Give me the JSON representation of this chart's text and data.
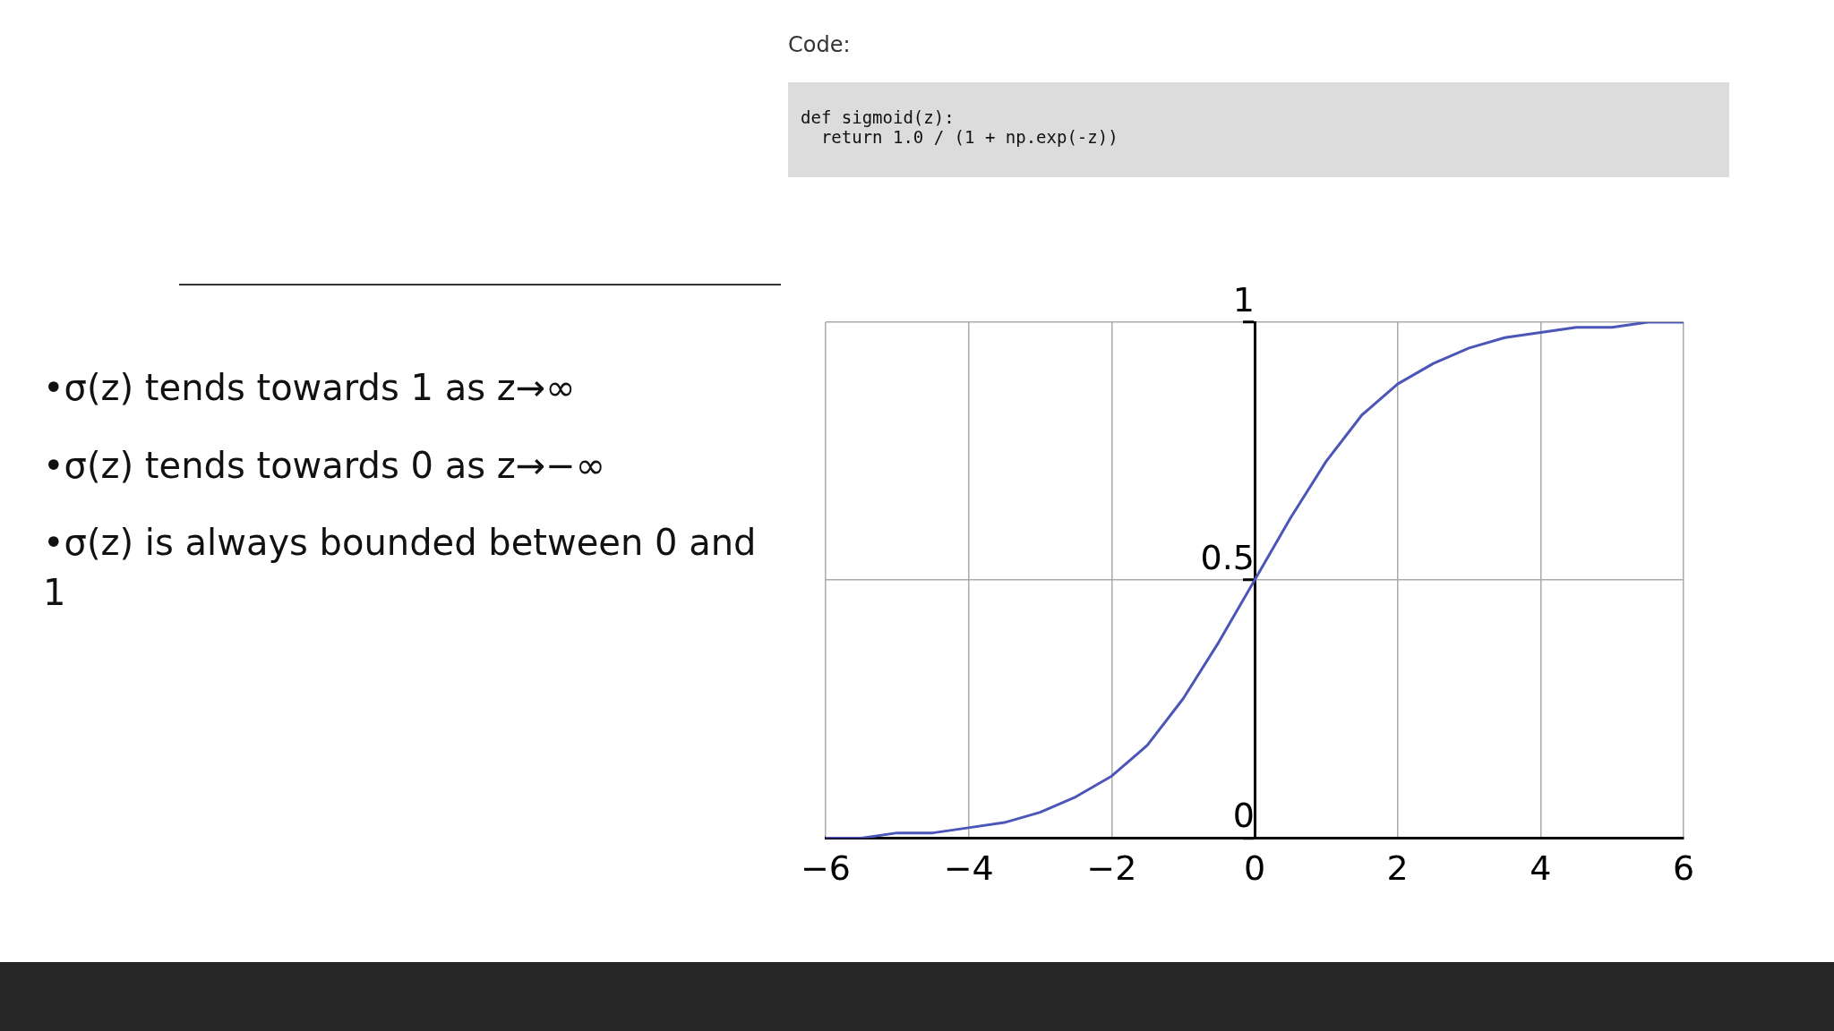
{
  "chart_data": {
    "type": "line",
    "x": [
      -6,
      -5.5,
      -5,
      -4.5,
      -4,
      -3.5,
      -3,
      -2.5,
      -2,
      -1.5,
      -1,
      -0.5,
      0,
      0.5,
      1,
      1.5,
      2,
      2.5,
      3,
      3.5,
      4,
      4.5,
      5,
      5.5,
      6
    ],
    "series": [
      {
        "color": "#4c55b8",
        "values": [
          0.0,
          0.0,
          0.01,
          0.01,
          0.02,
          0.03,
          0.05,
          0.08,
          0.12,
          0.18,
          0.27,
          0.38,
          0.5,
          0.62,
          0.73,
          0.82,
          0.88,
          0.92,
          0.95,
          0.97,
          0.98,
          0.99,
          0.99,
          1.0,
          1.0
        ]
      }
    ],
    "xlim": [
      -6,
      6
    ],
    "ylim": [
      0,
      1
    ],
    "xticks": [
      {
        "value": -6,
        "label": "−6"
      },
      {
        "value": -4,
        "label": "−4"
      },
      {
        "value": -2,
        "label": "−2"
      },
      0,
      2,
      4,
      6
    ],
    "yticks": [
      0,
      0.5,
      1
    ],
    "grid": true,
    "legend": false,
    "marker": "none",
    "line_style": "solid",
    "annotations": [
      "Code:",
      "def sigmoid(z):\n  return 1.0 / (1 + np.exp(-z))",
      "•σ(z)  tends towards 1 as z→∞",
      "•σ(z)  tends towards 0 as z→−∞",
      "•σ(z)  is always bounded between 0 and 1"
    ]
  }
}
